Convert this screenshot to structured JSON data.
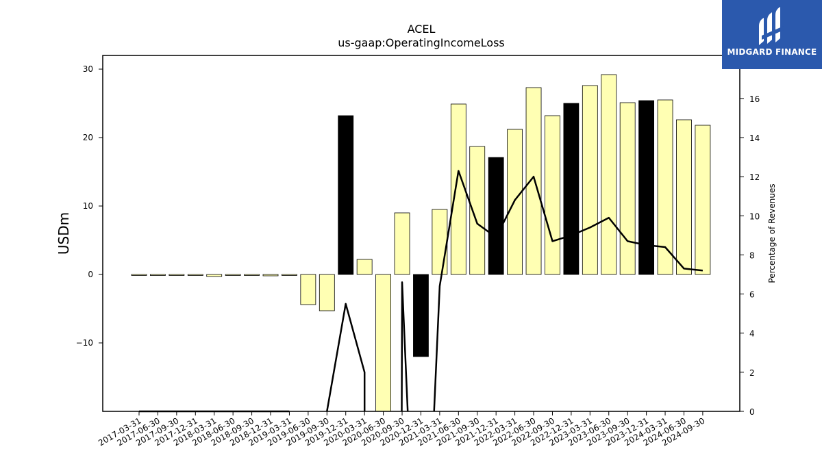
{
  "chart_data": {
    "type": "bar",
    "title": "ACEL",
    "subtitle": "us-gaap:OperatingIncomeLoss",
    "ylabel": "USDm",
    "y2label": "Percentage of Revenues",
    "ylim": [
      -20,
      32
    ],
    "y2lim": [
      0,
      18.2
    ],
    "yticks": [
      -10,
      0,
      10,
      20,
      30
    ],
    "yticklabels": [
      "−10",
      "0",
      "10",
      "20",
      "30"
    ],
    "y2ticks": [
      0,
      2,
      4,
      6,
      8,
      10,
      12,
      14,
      16
    ],
    "categories": [
      "2017-03-31",
      "2017-06-30",
      "2017-09-30",
      "2017-12-31",
      "2018-03-31",
      "2018-06-30",
      "2018-09-30",
      "2018-12-31",
      "2019-03-31",
      "2019-06-30",
      "2019-09-30",
      "2019-12-31",
      "2020-03-31",
      "2020-06-30",
      "2020-09-30",
      "2020-12-31",
      "2021-03-31",
      "2021-06-30",
      "2021-09-30",
      "2021-12-31",
      "2022-03-31",
      "2022-06-30",
      "2022-09-30",
      "2022-12-31",
      "2023-03-31",
      "2023-06-30",
      "2023-09-30",
      "2023-12-31",
      "2024-03-31",
      "2024-06-30",
      "2024-09-30"
    ],
    "series": [
      {
        "type": "bar",
        "values": [
          -0.1,
          0.0,
          -0.1,
          -0.1,
          -0.3,
          -0.1,
          -0.1,
          -0.2,
          -0.1,
          -4.4,
          -5.3,
          23.2,
          2.2,
          -20.0,
          9.0,
          -12.0,
          9.5,
          24.9,
          18.7,
          17.1,
          21.2,
          27.3,
          23.2,
          25.0,
          27.6,
          29.2,
          25.1,
          25.4,
          25.5,
          22.6,
          21.8
        ],
        "colors": [
          "#ffffb3",
          "#ffffb3",
          "#ffffb3",
          "#ffffb3",
          "#ffffb3",
          "#ffffb3",
          "#ffffb3",
          "#ffffb3",
          "#ffffb3",
          "#ffffb3",
          "#ffffb3",
          "#000000",
          "#ffffb3",
          "#ffffb3",
          "#ffffb3",
          "#000000",
          "#ffffb3",
          "#ffffb3",
          "#ffffb3",
          "#000000",
          "#ffffb3",
          "#ffffb3",
          "#ffffb3",
          "#000000",
          "#ffffb3",
          "#ffffb3",
          "#ffffb3",
          "#000000",
          "#ffffb3",
          "#ffffb3",
          "#ffffb3"
        ]
      },
      {
        "type": "line",
        "axis": "right",
        "color": "#000000",
        "segments": [
          [
            [
              0,
              0
            ],
            [
              1,
              0
            ],
            [
              2,
              0
            ],
            [
              3,
              0
            ],
            [
              4,
              0
            ],
            [
              5,
              0
            ],
            [
              6,
              0
            ],
            [
              7,
              0
            ],
            [
              8,
              0
            ]
          ],
          [
            [
              10,
              0
            ],
            [
              11,
              5.5
            ],
            [
              12,
              2.0
            ],
            [
              12,
              0
            ]
          ],
          [
            [
              13.98,
              0
            ],
            [
              14,
              6.6
            ],
            [
              14.3,
              0
            ]
          ],
          [
            [
              15.7,
              0
            ],
            [
              16,
              6.4
            ],
            [
              17,
              12.3
            ],
            [
              18,
              9.6
            ],
            [
              19,
              8.9
            ],
            [
              20,
              10.8
            ],
            [
              21,
              12.0
            ],
            [
              22,
              8.7
            ],
            [
              23,
              9.0
            ],
            [
              24,
              9.4
            ],
            [
              25,
              9.9
            ],
            [
              26,
              8.7
            ],
            [
              27,
              8.5
            ],
            [
              28,
              8.4
            ],
            [
              29,
              7.3
            ],
            [
              30,
              7.2
            ]
          ]
        ]
      }
    ],
    "grid": false,
    "bar_edge_color": "#000000"
  },
  "brand": {
    "name": "MIDGARD FINANCE",
    "background": "#2b59ad"
  }
}
